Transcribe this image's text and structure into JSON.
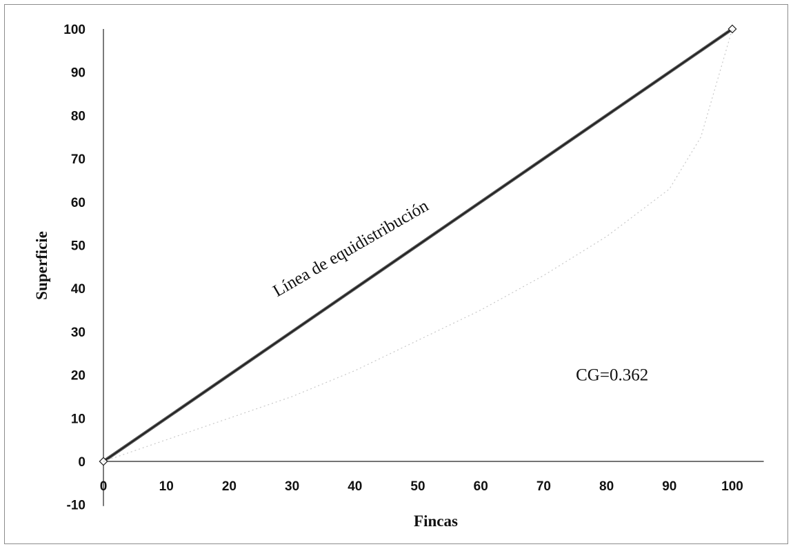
{
  "chart_data": {
    "type": "line",
    "title": "",
    "xlabel": "Fincas",
    "ylabel": "Superficie",
    "xlim": [
      0,
      105
    ],
    "ylim": [
      -10,
      100
    ],
    "x_ticks": [
      0,
      10,
      20,
      30,
      40,
      50,
      60,
      70,
      80,
      90,
      100
    ],
    "y_ticks": [
      -10,
      0,
      10,
      20,
      30,
      40,
      50,
      60,
      70,
      80,
      90,
      100
    ],
    "grid": false,
    "legend": "none",
    "series": [
      {
        "x": [
          0,
          100
        ],
        "y": [
          0,
          100
        ],
        "color": "#555555"
      },
      {
        "x": [
          0,
          10,
          20,
          30,
          40,
          50,
          60,
          70,
          80,
          90,
          95,
          100
        ],
        "y": [
          0,
          5,
          10,
          15,
          21,
          28,
          35,
          43,
          52,
          63,
          75,
          100
        ],
        "color": "#c8c8c8"
      }
    ],
    "annotations": [
      {
        "text": "Línea de equidistribución",
        "x": 32,
        "y": 38,
        "rotation_deg": -30
      },
      {
        "text": "CG=0.362",
        "x": 76,
        "y": 20
      }
    ]
  }
}
